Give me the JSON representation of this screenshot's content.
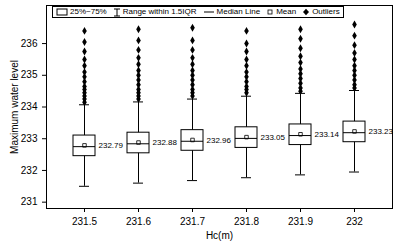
{
  "chart_data": {
    "type": "box",
    "x_label": "Hc(m)",
    "y_label": "Maximum water level",
    "categories": [
      "231.5",
      "231.6",
      "231.7",
      "231.8",
      "231.9",
      "232"
    ],
    "whisker_low": [
      231.5,
      231.6,
      231.68,
      231.77,
      231.86,
      231.95
    ],
    "q1": [
      232.45,
      232.54,
      232.62,
      232.71,
      232.8,
      232.89
    ],
    "median": [
      232.75,
      232.84,
      232.92,
      233.01,
      233.1,
      233.19
    ],
    "q3": [
      233.1,
      233.19,
      233.27,
      233.36,
      233.45,
      233.54
    ],
    "whisker_high": [
      234.07,
      234.16,
      234.25,
      234.34,
      234.43,
      234.52
    ],
    "mean": [
      232.79,
      232.88,
      232.96,
      233.05,
      233.14,
      233.23
    ],
    "outliers": [
      [
        234.15,
        234.25,
        234.35,
        234.45,
        234.55,
        234.65,
        234.8,
        234.95,
        235.1,
        235.3,
        235.5,
        235.75,
        236.05,
        236.4
      ],
      [
        234.25,
        234.35,
        234.45,
        234.55,
        234.7,
        234.85,
        235.0,
        235.15,
        235.35,
        235.55,
        235.8,
        236.1,
        236.45
      ],
      [
        234.35,
        234.45,
        234.55,
        234.7,
        234.85,
        235.0,
        235.15,
        235.35,
        235.55,
        235.8,
        236.1,
        236.5
      ],
      [
        234.45,
        234.55,
        234.65,
        234.8,
        234.95,
        235.1,
        235.3,
        235.5,
        235.75,
        236.0,
        236.4
      ],
      [
        234.5,
        234.6,
        234.75,
        234.9,
        235.05,
        235.2,
        235.4,
        235.6,
        235.85,
        236.15,
        236.45
      ],
      [
        234.6,
        234.7,
        234.85,
        235.0,
        235.15,
        235.3,
        235.5,
        235.7,
        235.95,
        236.25,
        236.6
      ]
    ],
    "ylim": [
      230.8,
      237.2
    ],
    "yticks": [
      231,
      232,
      233,
      234,
      235,
      236
    ],
    "data_labels": true,
    "legend": "top",
    "legend_labels": [
      "25%~75%",
      "Range within 1.5IQR",
      "Median Line",
      "Mean",
      "Outliers"
    ],
    "color": "#000000"
  }
}
